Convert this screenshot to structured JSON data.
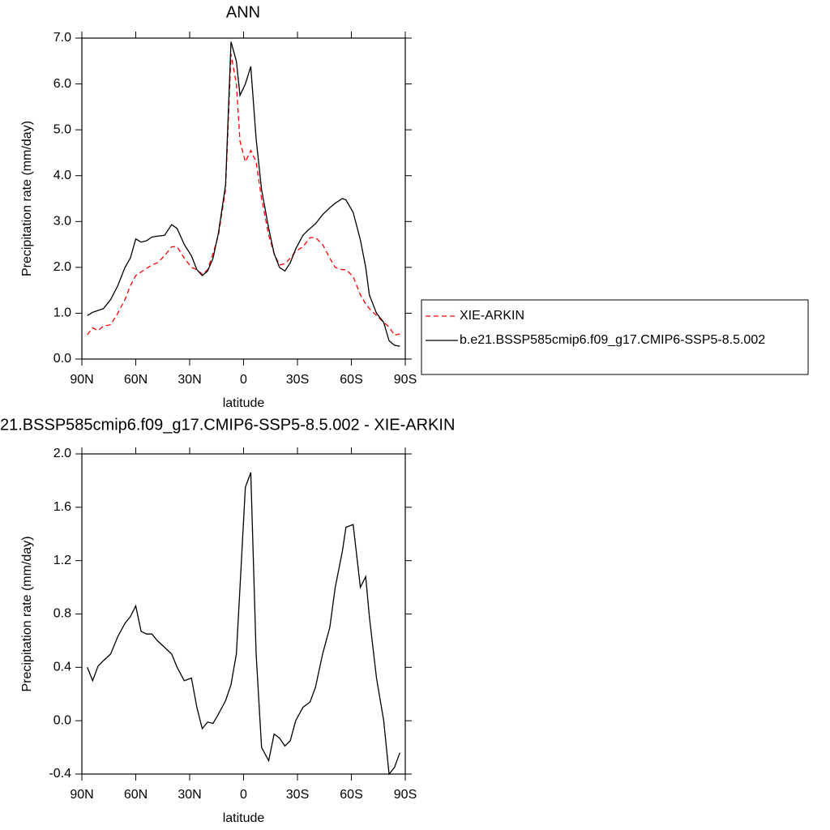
{
  "chart_data": [
    {
      "type": "line",
      "title": "ANN",
      "x_label": "latitude",
      "y_label": "Precipitation rate (mm/day)",
      "x": [
        87,
        84,
        81,
        78,
        74,
        70,
        66,
        63,
        60,
        57,
        54,
        51,
        48,
        44,
        40,
        37,
        33,
        29,
        26,
        23,
        20,
        17,
        14,
        10,
        7,
        4,
        2,
        -1,
        -4,
        -7,
        -10,
        -14,
        -17,
        -20,
        -23,
        -26,
        -29,
        -33,
        -37,
        -40,
        -44,
        -48,
        -51,
        -55,
        -57,
        -61,
        -65,
        -68,
        -70,
        -74,
        -78,
        -81,
        -84,
        -87
      ],
      "series": [
        {
          "name": "XIE-ARKIN",
          "color": "#ff0000",
          "line_style": "dashed",
          "values": [
            0.53,
            0.68,
            0.62,
            0.72,
            0.75,
            1.0,
            1.3,
            1.6,
            1.82,
            1.9,
            1.98,
            2.05,
            2.1,
            2.25,
            2.45,
            2.45,
            2.2,
            2.0,
            1.95,
            1.85,
            1.95,
            2.3,
            2.7,
            3.7,
            6.65,
            6.0,
            4.75,
            4.3,
            4.55,
            4.3,
            3.5,
            2.7,
            2.3,
            2.05,
            2.08,
            2.2,
            2.35,
            2.45,
            2.65,
            2.65,
            2.5,
            2.2,
            2.0,
            1.95,
            1.95,
            1.8,
            1.4,
            1.2,
            1.1,
            0.95,
            0.8,
            0.7,
            0.52,
            0.55
          ]
        },
        {
          "name": "b.e21.BSSP585cmip6.f09_g17.CMIP6-SSP5-8.5.002",
          "color": "#000000",
          "line_style": "solid",
          "values": [
            0.95,
            1.02,
            1.06,
            1.1,
            1.3,
            1.6,
            2.0,
            2.2,
            2.62,
            2.55,
            2.58,
            2.66,
            2.68,
            2.7,
            2.93,
            2.85,
            2.5,
            2.25,
            1.95,
            1.82,
            1.92,
            2.2,
            2.75,
            3.8,
            6.92,
            6.5,
            5.75,
            6.0,
            6.38,
            4.8,
            3.7,
            2.85,
            2.3,
            2.0,
            1.92,
            2.1,
            2.4,
            2.7,
            2.85,
            2.95,
            3.15,
            3.3,
            3.4,
            3.5,
            3.47,
            3.2,
            2.6,
            2.0,
            1.4,
            1.0,
            0.8,
            0.4,
            0.3,
            0.28
          ]
        }
      ],
      "xlim": [
        90,
        -90
      ],
      "xticks": [
        {
          "value": 90,
          "label": "90N"
        },
        {
          "value": 60,
          "label": "60N"
        },
        {
          "value": 30,
          "label": "30N"
        },
        0,
        {
          "value": -30,
          "label": "30S"
        },
        {
          "value": -60,
          "label": "60S"
        },
        {
          "value": -90,
          "label": "90S"
        }
      ],
      "ylim": [
        0,
        7
      ],
      "yticks": [
        {
          "value": 0,
          "label": "0.0"
        },
        {
          "value": 1,
          "label": "1.0"
        },
        {
          "value": 2,
          "label": "2.0"
        },
        {
          "value": 3,
          "label": "3.0"
        },
        {
          "value": 4,
          "label": "4.0"
        },
        {
          "value": 5,
          "label": "5.0"
        },
        {
          "value": 6,
          "label": "6.0"
        },
        {
          "value": 7,
          "label": "7.0"
        }
      ],
      "legend": "right"
    },
    {
      "type": "line",
      "title": "21.BSSP585cmip6.f09_g17.CMIP6-SSP5-8.5.002 - XIE-ARKIN",
      "x_label": "latitude",
      "y_label": "Precipitation rate (mm/day)",
      "x": [
        87,
        84,
        81,
        78,
        74,
        70,
        66,
        63,
        60,
        57,
        54,
        51,
        48,
        44,
        40,
        37,
        33,
        29,
        26,
        23,
        20,
        17,
        14,
        10,
        7,
        4,
        2,
        -1,
        -4,
        -7,
        -10,
        -14,
        -17,
        -20,
        -23,
        -26,
        -29,
        -33,
        -37,
        -40,
        -44,
        -48,
        -51,
        -55,
        -57,
        -61,
        -65,
        -68,
        -70,
        -74,
        -78,
        -81,
        -84,
        -87
      ],
      "values": [
        0.4,
        0.3,
        0.41,
        0.45,
        0.5,
        0.63,
        0.73,
        0.78,
        0.86,
        0.67,
        0.65,
        0.65,
        0.6,
        0.55,
        0.5,
        0.4,
        0.3,
        0.32,
        0.1,
        -0.06,
        -0.01,
        -0.02,
        0.05,
        0.15,
        0.27,
        0.5,
        1.0,
        1.75,
        1.86,
        0.5,
        -0.2,
        -0.3,
        -0.1,
        -0.13,
        -0.19,
        -0.15,
        0.0,
        0.1,
        0.14,
        0.25,
        0.5,
        0.7,
        1.0,
        1.27,
        1.45,
        1.47,
        1.0,
        1.08,
        0.78,
        0.32,
        0.0,
        -0.4,
        -0.35,
        -0.24
      ],
      "color": "#000000",
      "xlim": [
        90,
        -90
      ],
      "xticks": [
        {
          "value": 90,
          "label": "90N"
        },
        {
          "value": 60,
          "label": "60N"
        },
        {
          "value": 30,
          "label": "30N"
        },
        0,
        {
          "value": -30,
          "label": "30S"
        },
        {
          "value": -60,
          "label": "60S"
        },
        {
          "value": -90,
          "label": "90S"
        }
      ],
      "ylim": [
        -0.4,
        2.0
      ],
      "yticks": [
        {
          "value": -0.4,
          "label": "-0.4"
        },
        {
          "value": 0,
          "label": "0.0"
        },
        {
          "value": 0.4,
          "label": "0.4"
        },
        {
          "value": 0.8,
          "label": "0.8"
        },
        {
          "value": 1.2,
          "label": "1.2"
        },
        {
          "value": 1.6,
          "label": "1.6"
        },
        {
          "value": 2.0,
          "label": "2.0"
        }
      ]
    }
  ]
}
